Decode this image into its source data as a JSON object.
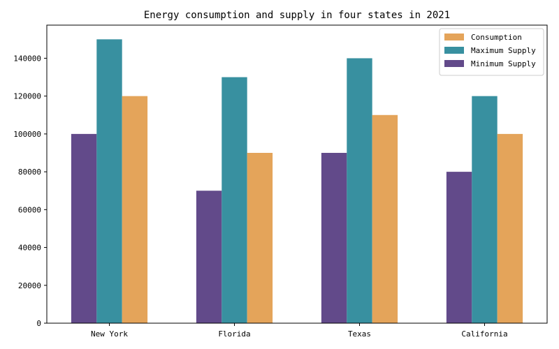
{
  "chart_data": {
    "type": "bar",
    "title": "Energy consumption and supply in four states in 2021",
    "xlabel": "",
    "ylabel": "",
    "categories": [
      "New York",
      "Florida",
      "Texas",
      "California"
    ],
    "series": [
      {
        "name": "Minimum Supply",
        "values": [
          100000,
          70000,
          90000,
          80000
        ],
        "color": "#624a8a"
      },
      {
        "name": "Maximum Supply",
        "values": [
          150000,
          130000,
          140000,
          120000
        ],
        "color": "#3890a0"
      },
      {
        "name": "Consumption",
        "values": [
          120000,
          90000,
          110000,
          100000
        ],
        "color": "#e4a45a"
      }
    ],
    "legend_order": [
      "Consumption",
      "Maximum Supply",
      "Minimum Supply"
    ],
    "legend_position": "top-right",
    "ylim": [
      0,
      157500
    ],
    "yticks": [
      0,
      20000,
      40000,
      60000,
      80000,
      100000,
      120000,
      140000
    ],
    "grid": false
  }
}
